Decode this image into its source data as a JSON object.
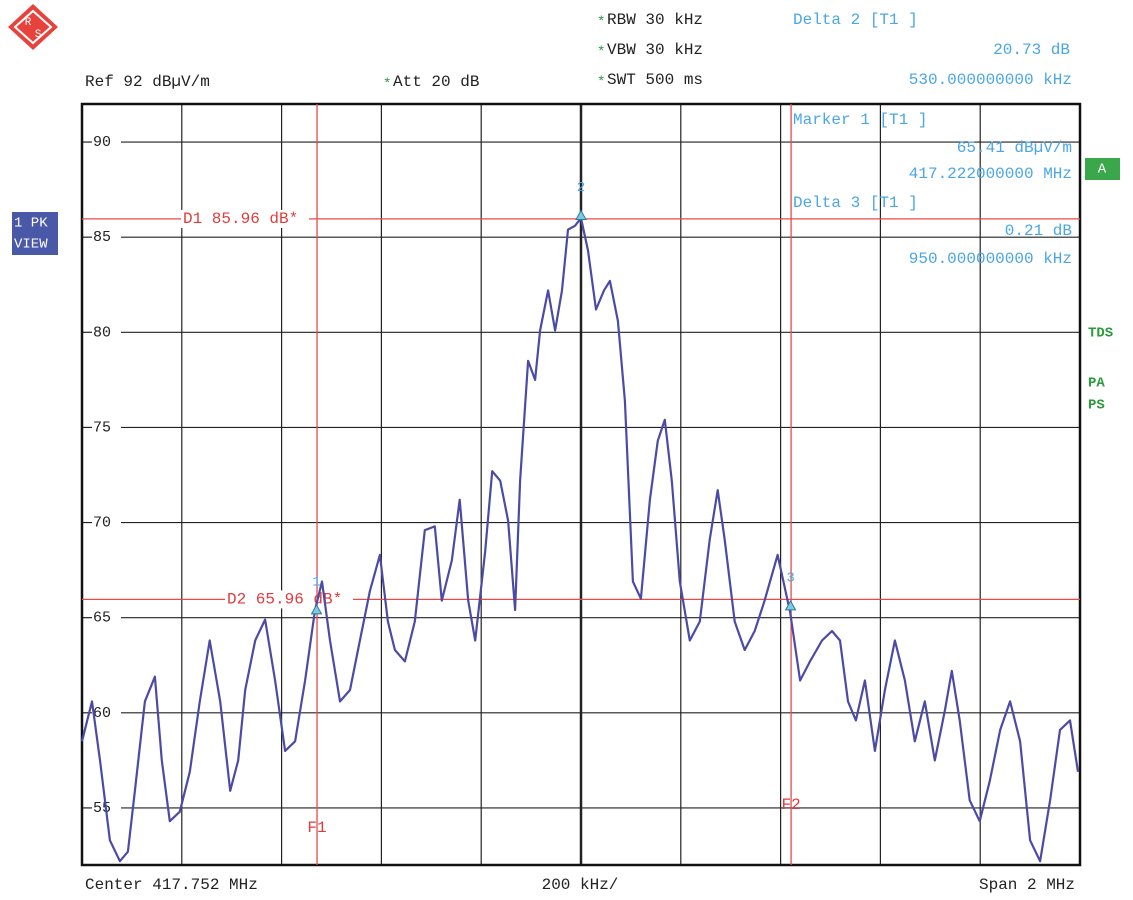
{
  "chart_data": {
    "type": "line",
    "logo": [
      "R",
      "S"
    ],
    "header": [
      {
        "mark": "*",
        "text": "RBW 30 kHz"
      },
      {
        "mark": "*",
        "text": "VBW 30 kHz"
      },
      {
        "mark": "*",
        "text": "SWT 500 ms"
      },
      {
        "mark": "*",
        "text": "Att  20 dB"
      }
    ],
    "ref": "Ref  92 dBµV/m",
    "readouts": [
      "Delta 2 [T1 ]",
      "20.73 dB",
      "530.000000000 kHz",
      "Marker 1 [T1 ]",
      "65.41 dBµV/m",
      "417.222000000 MHz",
      "Delta 3 [T1 ]",
      "0.21 dB",
      "950.000000000 kHz"
    ],
    "side_labels": {
      "trace": [
        "1 PK",
        "VIEW"
      ],
      "screen": "A",
      "flags": [
        "TDS",
        "PA",
        "PS"
      ]
    },
    "footer": [
      "Center 417.752 MHz",
      "200 kHz/",
      "Span 2 MHz"
    ],
    "color": "#4b4ba6",
    "grid": true,
    "xlim": [
      416.752,
      418.752
    ],
    "xticks": [
      416.952,
      417.152,
      417.352,
      417.552,
      417.752,
      417.952,
      418.152,
      418.352,
      418.552
    ],
    "ylim": [
      52,
      92
    ],
    "yticks": [
      55,
      60,
      65,
      70,
      75,
      80,
      85,
      90
    ],
    "x": [
      416.752,
      416.772,
      416.788,
      416.808,
      416.828,
      416.844,
      416.858,
      416.878,
      416.898,
      416.912,
      416.928,
      416.948,
      416.968,
      416.988,
      417.008,
      417.029,
      417.049,
      417.065,
      417.079,
      417.099,
      417.119,
      417.139,
      417.159,
      417.179,
      417.199,
      417.219,
      417.233,
      417.249,
      417.269,
      417.289,
      417.309,
      417.329,
      417.349,
      417.365,
      417.379,
      417.399,
      417.419,
      417.439,
      417.459,
      417.473,
      417.493,
      417.509,
      417.526,
      417.54,
      417.56,
      417.574,
      417.59,
      417.606,
      417.62,
      417.63,
      417.646,
      417.66,
      417.67,
      417.686,
      417.7,
      417.714,
      417.726,
      417.74,
      417.752,
      417.766,
      417.782,
      417.798,
      417.81,
      417.826,
      417.84,
      417.856,
      417.872,
      417.89,
      417.906,
      417.92,
      417.934,
      417.95,
      417.97,
      417.99,
      418.01,
      418.026,
      418.04,
      418.06,
      418.08,
      418.1,
      418.12,
      418.146,
      418.171,
      418.191,
      418.211,
      418.235,
      418.255,
      418.271,
      418.287,
      418.303,
      418.321,
      418.341,
      418.361,
      418.381,
      418.401,
      418.421,
      418.441,
      418.461,
      418.481,
      418.495,
      418.511,
      418.531,
      418.551,
      418.571,
      418.592,
      418.612,
      418.632,
      418.652,
      418.672,
      418.692,
      418.712,
      418.732,
      418.748
    ],
    "values": [
      58.5,
      60.6,
      57.5,
      53.3,
      52.2,
      52.7,
      55.9,
      60.6,
      61.9,
      57.5,
      54.3,
      54.8,
      56.9,
      60.6,
      63.8,
      60.6,
      55.9,
      57.5,
      61.2,
      63.8,
      64.9,
      61.7,
      58.0,
      58.5,
      61.7,
      65.4,
      66.9,
      63.8,
      60.6,
      61.2,
      63.8,
      66.4,
      68.3,
      64.8,
      63.3,
      62.7,
      64.8,
      69.6,
      69.8,
      65.9,
      68.0,
      71.2,
      65.9,
      63.8,
      68.5,
      72.7,
      72.2,
      70.1,
      65.4,
      72.2,
      78.5,
      77.5,
      80.1,
      82.2,
      80.1,
      82.2,
      85.4,
      85.6,
      86.0,
      84.3,
      81.2,
      82.2,
      82.7,
      80.6,
      76.4,
      66.9,
      66.0,
      71.2,
      74.3,
      75.4,
      72.2,
      66.9,
      63.8,
      64.8,
      69.1,
      71.7,
      69.1,
      64.8,
      63.3,
      64.3,
      65.9,
      68.3,
      65.3,
      61.7,
      62.7,
      63.8,
      64.3,
      63.8,
      60.6,
      59.6,
      61.7,
      58.0,
      61.2,
      63.8,
      61.7,
      58.5,
      60.6,
      57.5,
      60.1,
      62.2,
      59.6,
      55.4,
      54.3,
      56.4,
      59.1,
      60.6,
      58.5,
      53.3,
      52.2,
      55.4,
      59.1,
      59.6,
      56.9
    ],
    "markers": [
      {
        "label": "1",
        "x": 417.222,
        "y": 65.41
      },
      {
        "label": "2",
        "x": 417.752,
        "y": 86.14
      },
      {
        "label": "3",
        "x": 418.172,
        "y": 65.62
      }
    ],
    "display_lines": [
      {
        "label": "D1 85.96 dB*",
        "value": 85.96
      },
      {
        "label": "D2 65.96 dB*",
        "value": 65.96
      }
    ],
    "freq_lines": [
      {
        "label": "F1",
        "value": 417.223
      },
      {
        "label": "F2",
        "value": 418.173
      }
    ]
  }
}
